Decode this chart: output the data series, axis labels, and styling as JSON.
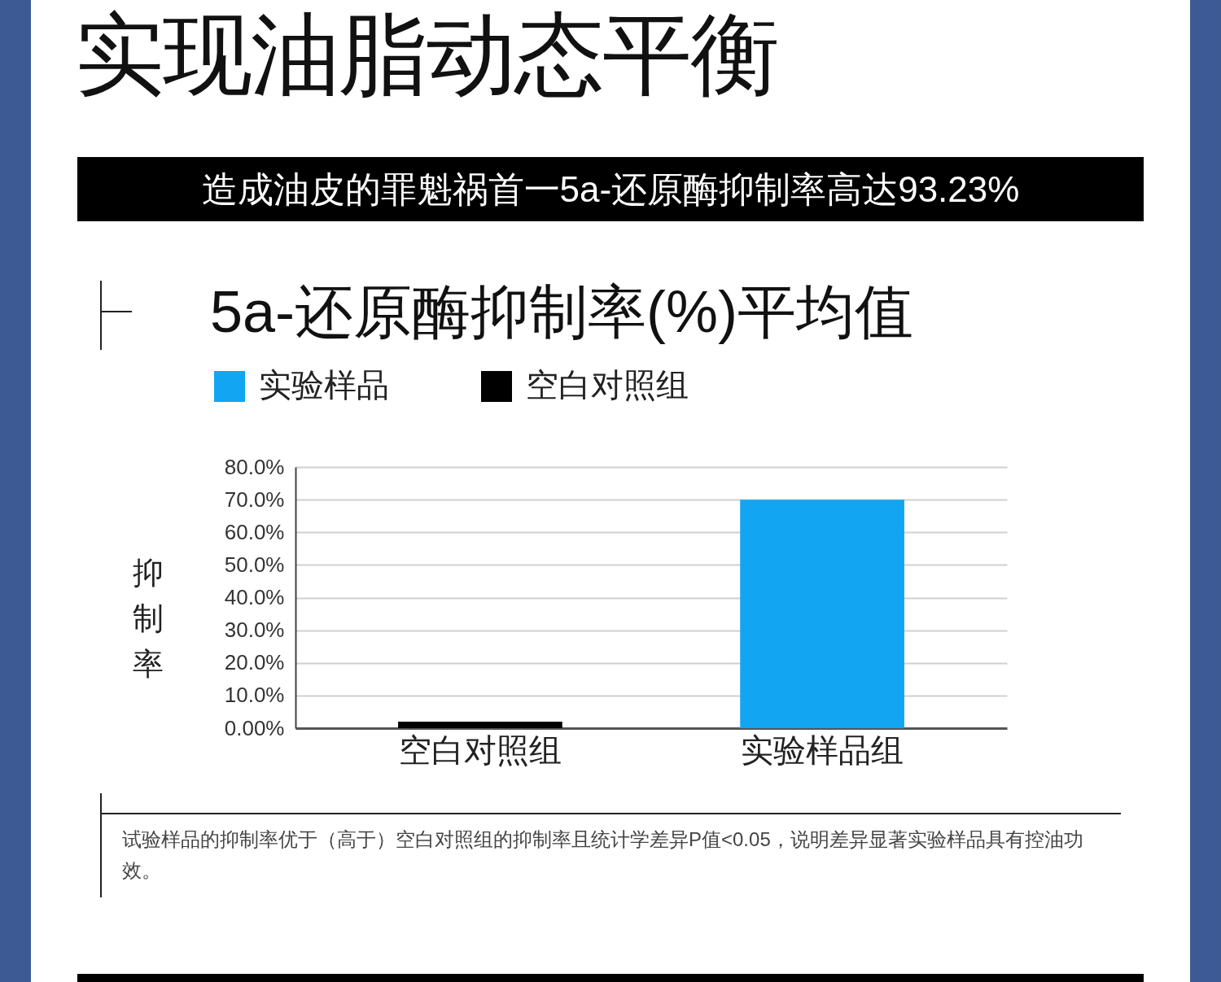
{
  "chart_data": {
    "type": "bar",
    "title": "实现油脂动态平衡",
    "subtitle": "造成油皮的罪魁祸首一5a-还原酶抑制率高达93.23%",
    "ylabel": "抑制率",
    "annotations": [
      "5a-还原酶抑制率(%)平均值",
      "试验样品的抑制率优于（高于）空白对照组的抑制率且统计学差异P值<0.05，说明差异显著实验样品具有控油功效。"
    ],
    "categories": [
      "空白对照组",
      "实验样品组"
    ],
    "series": [
      {
        "name": "实验样品",
        "color": "#12a5f1",
        "values": [
          null,
          70
        ]
      },
      {
        "name": "空白对照组",
        "color": "#000000",
        "values": [
          2,
          null
        ]
      }
    ],
    "ylim": [
      0,
      80
    ],
    "yticks": [
      {
        "value": 0,
        "label": "0.00%"
      },
      {
        "value": 10,
        "label": "10.0%"
      },
      {
        "value": 20,
        "label": "20.0%"
      },
      {
        "value": 30,
        "label": "30.0%"
      },
      {
        "value": 40,
        "label": "40.0%"
      },
      {
        "value": 50,
        "label": "50.0%"
      },
      {
        "value": 60,
        "label": "60.0%"
      },
      {
        "value": 70,
        "label": "70.0%"
      },
      {
        "value": 80,
        "label": "80.0%"
      }
    ],
    "grid": "y",
    "legend": "top left"
  }
}
